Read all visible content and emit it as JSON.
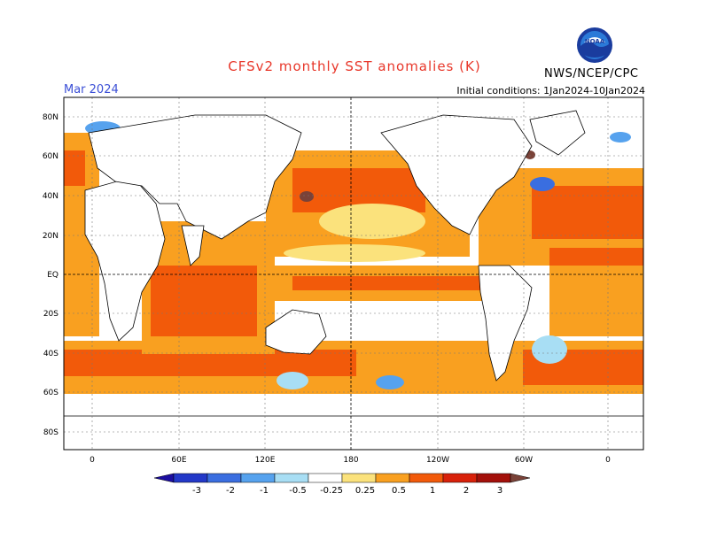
{
  "title": "CFSv2 monthly SST anomalies (K)",
  "month": "Mar 2024",
  "initial_conditions": "Initial conditions: 1Jan2024-10Jan2024",
  "agency": "NWS/NCEP/CPC",
  "logo_text": "NOAA",
  "lat_ticks": [
    "80N",
    "60N",
    "40N",
    "20N",
    "EQ",
    "20S",
    "40S",
    "60S",
    "80S"
  ],
  "lon_ticks": [
    "0",
    "60E",
    "120E",
    "180",
    "120W",
    "60W",
    "0"
  ],
  "colorbar": {
    "labels": [
      "-3",
      "-2",
      "-1",
      "-0.5",
      "-0.25",
      "0.25",
      "0.5",
      "1",
      "2",
      "3"
    ],
    "colors": [
      "#1c0ea0",
      "#2338c8",
      "#3a6ee0",
      "#56a2ee",
      "#a8def4",
      "#ffffff",
      "#fbe27c",
      "#f9a020",
      "#f25a0a",
      "#d8210a",
      "#a3100a",
      "#7a4238"
    ]
  },
  "colors": {
    "title": "#e8372a",
    "month": "#3b4fd6",
    "land": "#ffffff"
  }
}
